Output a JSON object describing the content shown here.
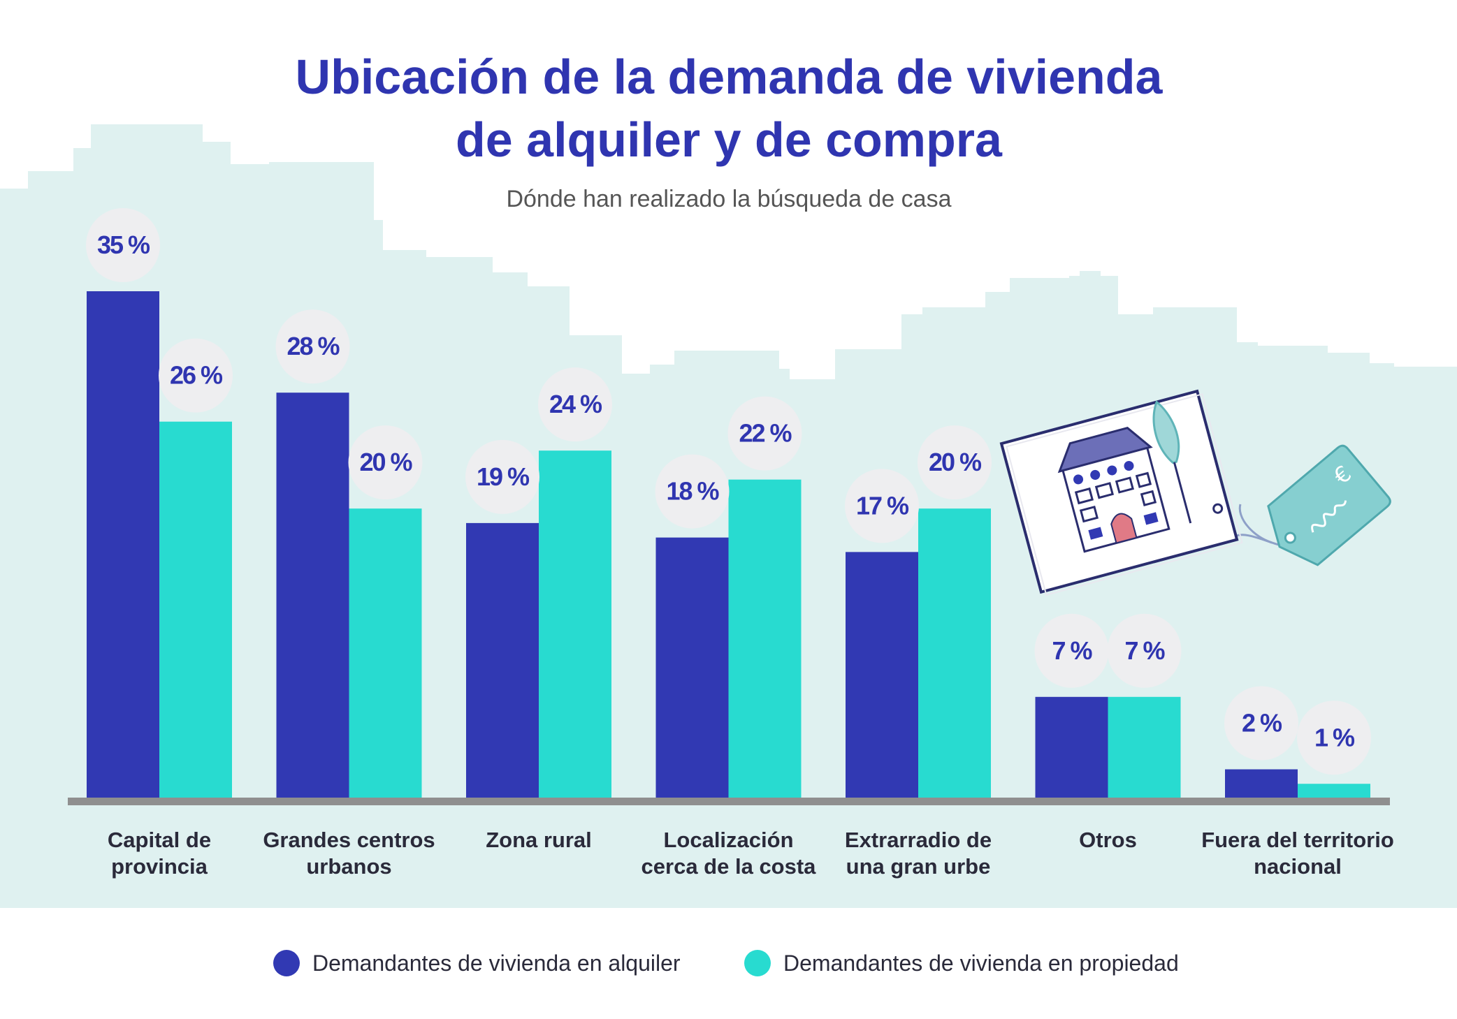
{
  "chart_data": {
    "type": "bar",
    "title_lines": [
      "Ubicación de la demanda de vivienda",
      "de alquiler y de compra"
    ],
    "subtitle": "Dónde han realizado la búsqueda de casa",
    "categories": [
      [
        "Capital de",
        "provincia"
      ],
      [
        "Grandes centros",
        "urbanos"
      ],
      [
        "Zona rural"
      ],
      [
        "Localización",
        "cerca de la costa"
      ],
      [
        "Extrarradio de",
        "una gran urbe"
      ],
      [
        "Otros"
      ],
      [
        "Fuera del territorio",
        "nacional"
      ]
    ],
    "series": [
      {
        "name": "Demandantes de vivienda en alquiler",
        "color": "#3139b3",
        "values": [
          35,
          28,
          19,
          18,
          17,
          7,
          2
        ],
        "labels": [
          "35 %",
          "28 %",
          "19 %",
          "18 %",
          "17 %",
          "7 %",
          "2 %"
        ]
      },
      {
        "name": "Demandantes de vivienda en propiedad",
        "color": "#28dbd0",
        "values": [
          26,
          20,
          24,
          22,
          20,
          7,
          1
        ],
        "labels": [
          "26 %",
          "20 %",
          "24 %",
          "22 %",
          "20 %",
          "7 %",
          "1 %"
        ]
      }
    ],
    "ylim": [
      0,
      35
    ],
    "grid": false,
    "legend_position": "bottom",
    "colors": {
      "title": "#2f35b0",
      "subtitle": "#555555",
      "text": "#2a2a3a",
      "background_skyline": "#dff1f0",
      "baseline": "#8f8f8f",
      "label_circle": "#eeeef0"
    }
  }
}
